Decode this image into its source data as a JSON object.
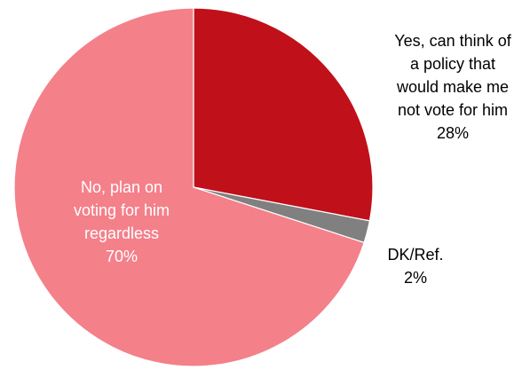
{
  "chart_data": {
    "type": "pie",
    "slices": [
      {
        "label_lines": [
          "Yes, can think of",
          "a policy that",
          "would make me",
          "not vote for him"
        ],
        "value": 28,
        "value_label": "28%",
        "color": "#c0101a",
        "label_color": "#000000"
      },
      {
        "label_lines": [
          "DK/Ref."
        ],
        "value": 2,
        "value_label": "2%",
        "color": "#808080",
        "label_color": "#000000"
      },
      {
        "label_lines": [
          "No, plan on",
          "voting for him",
          "regardless"
        ],
        "value": 70,
        "value_label": "70%",
        "color": "#f4808a",
        "label_color": "#ffffff"
      }
    ]
  }
}
